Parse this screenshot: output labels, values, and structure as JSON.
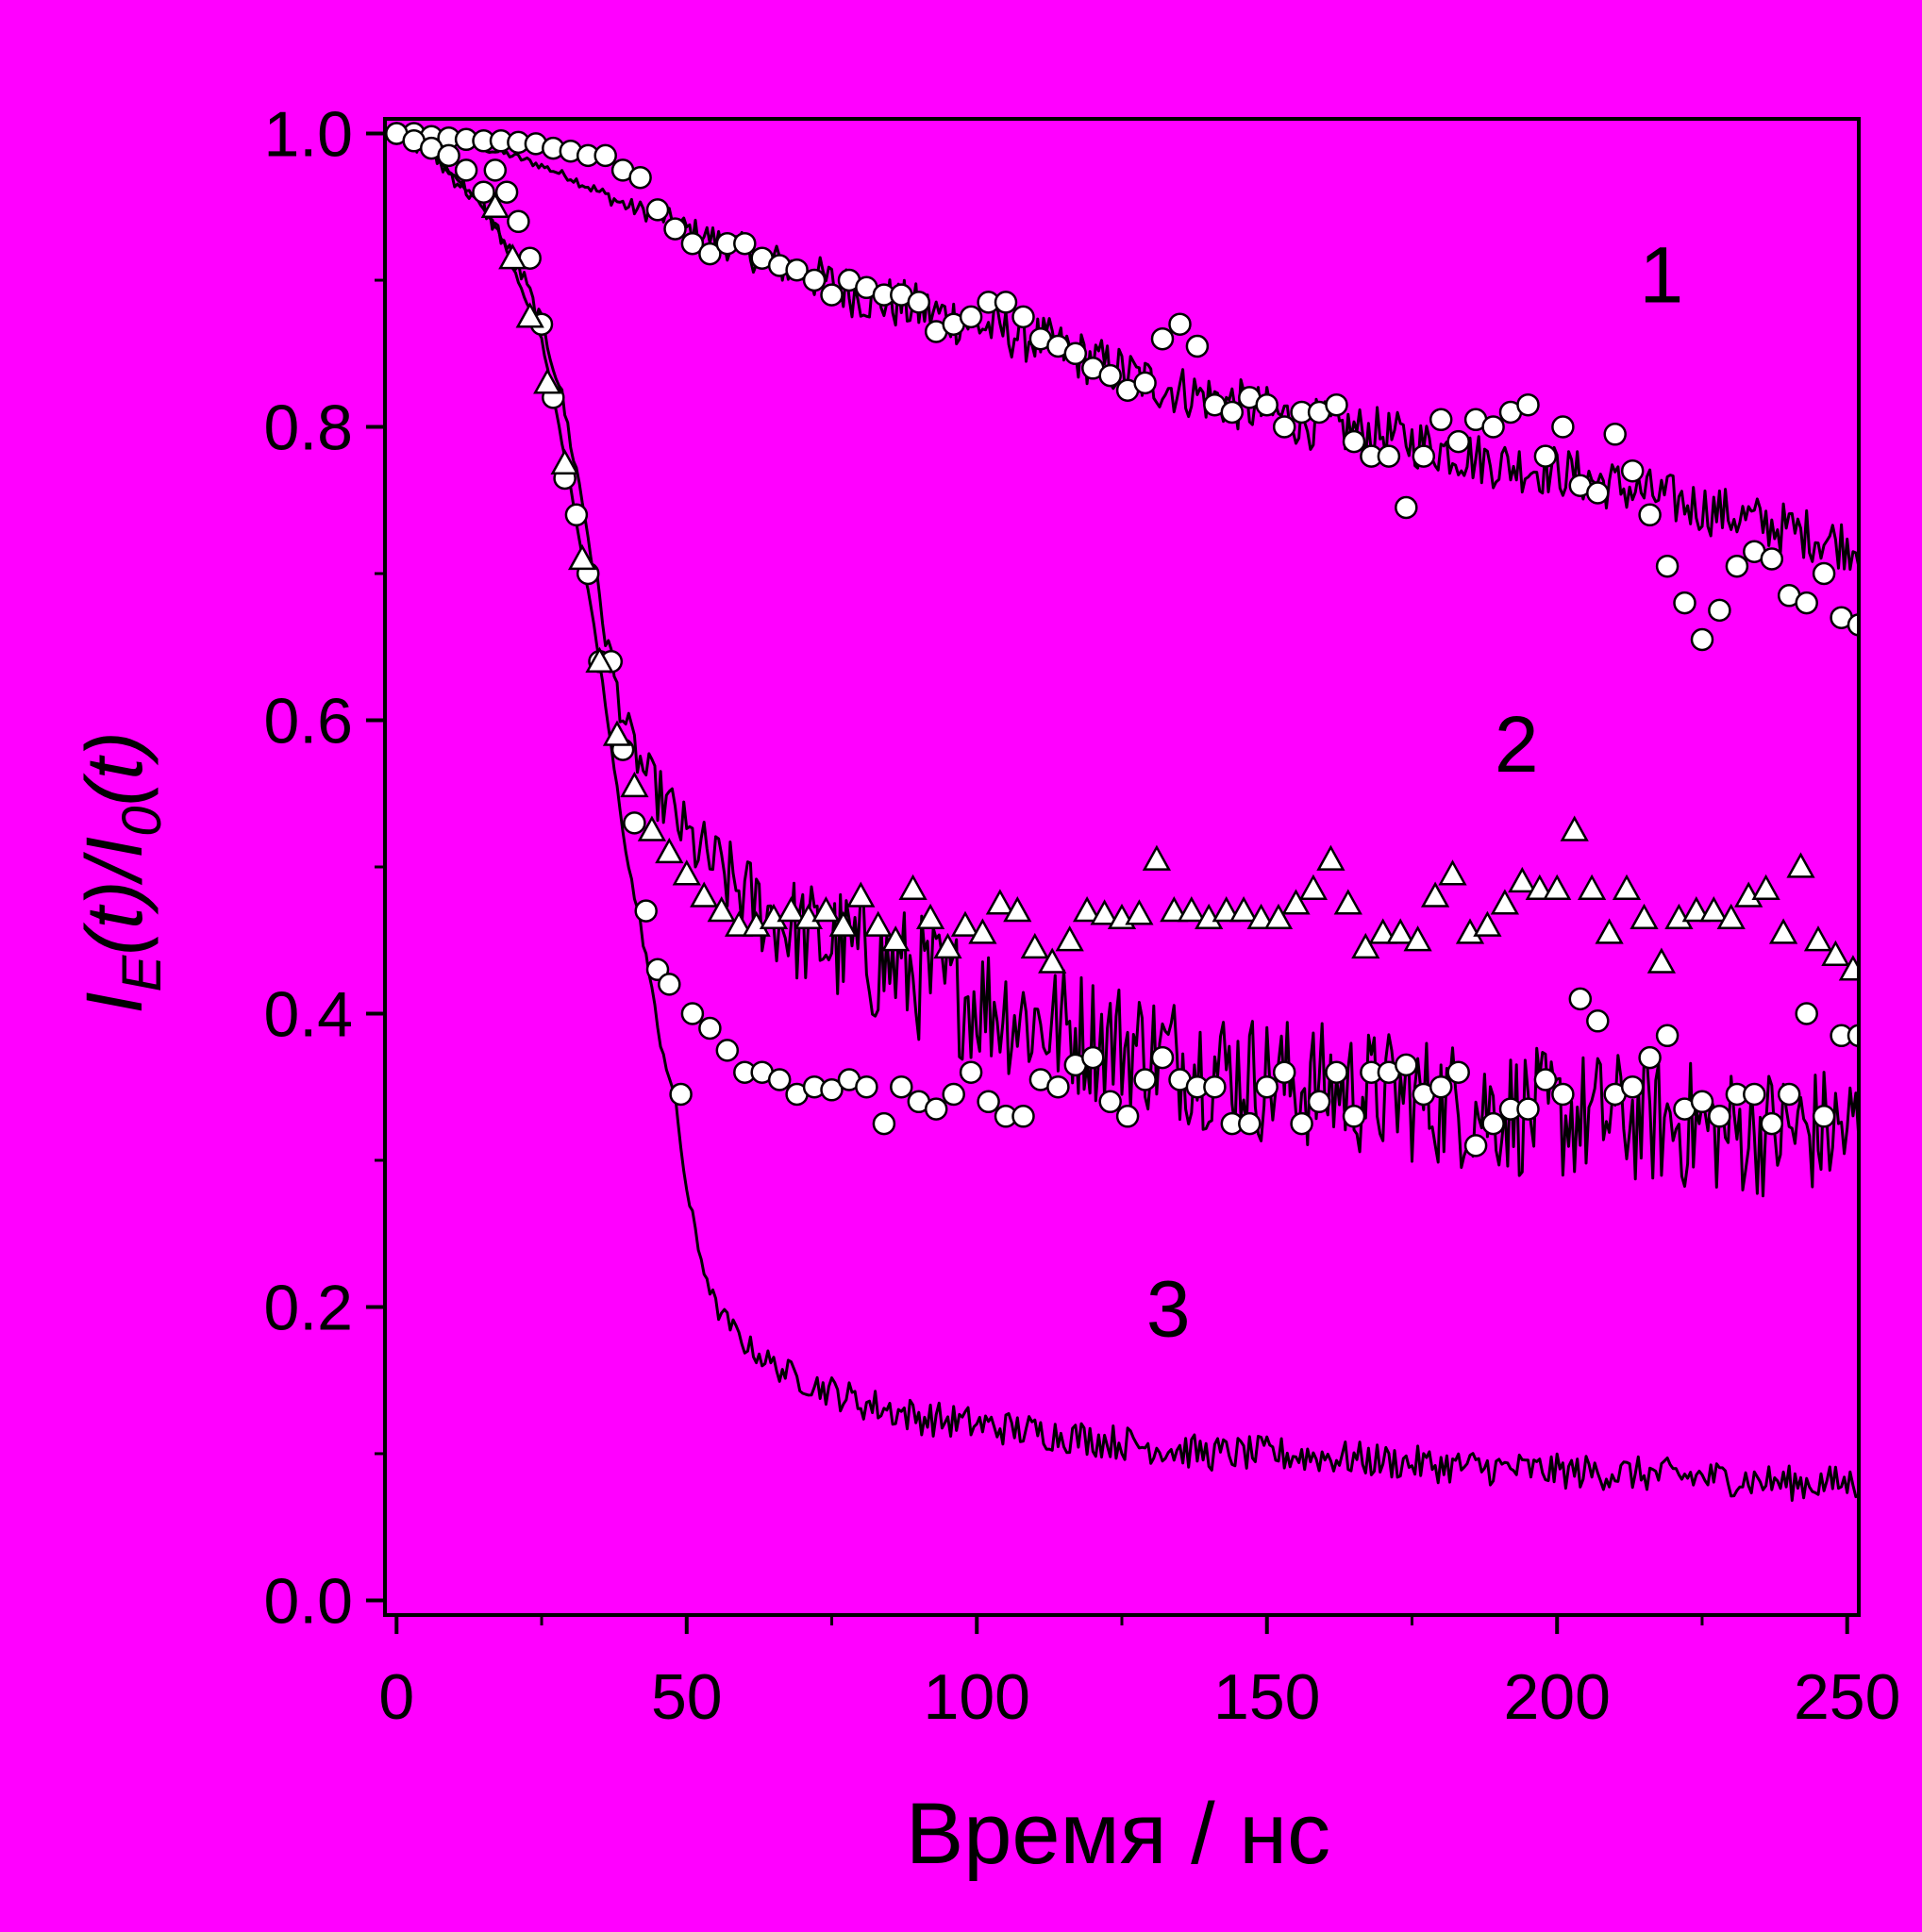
{
  "colors": {
    "background": "#ff00ff",
    "axis": "#000000",
    "line": "#000000",
    "marker_fill": "#ffffff",
    "marker_stroke": "#000000"
  },
  "chart_data": {
    "type": "line",
    "xlabel": "Время / нс",
    "ylabel": {
      "I1": "I",
      "sub1": "E",
      "mid": "(t)/",
      "I2": "I",
      "sub2": "0",
      "end": "(t)"
    },
    "xlim": [
      -2,
      252
    ],
    "ylim": [
      -0.01,
      1.01
    ],
    "xticks": [
      0,
      50,
      100,
      150,
      200,
      250
    ],
    "xtick_labels": [
      "0",
      "50",
      "100",
      "150",
      "200",
      "250"
    ],
    "yticks": [
      0.0,
      0.2,
      0.4,
      0.6,
      0.8,
      1.0
    ],
    "ytick_labels": [
      "0.0",
      "0.2",
      "0.4",
      "0.6",
      "0.8",
      "1.0"
    ],
    "minor_xticks": [
      25,
      75,
      125,
      175,
      225
    ],
    "minor_yticks": [
      0.1,
      0.3,
      0.5,
      0.7,
      0.9
    ],
    "grid": false,
    "legend": "none",
    "curve_labels": [
      {
        "text": "1",
        "x": 218,
        "y": 0.885
      },
      {
        "text": "2",
        "x": 193,
        "y": 0.565
      },
      {
        "text": "3",
        "x": 133,
        "y": 0.18
      }
    ],
    "series": [
      {
        "kind": "line",
        "x": [
          0,
          5,
          10,
          15,
          20,
          25,
          30,
          35,
          40,
          45,
          50,
          60,
          70,
          80,
          90,
          100,
          110,
          120,
          130,
          140,
          150,
          160,
          170,
          180,
          190,
          200,
          210,
          220,
          230,
          240,
          250,
          252
        ],
        "y": [
          1.0,
          0.998,
          0.995,
          0.99,
          0.985,
          0.978,
          0.97,
          0.96,
          0.95,
          0.945,
          0.935,
          0.92,
          0.905,
          0.89,
          0.88,
          0.87,
          0.86,
          0.845,
          0.83,
          0.82,
          0.81,
          0.8,
          0.795,
          0.785,
          0.775,
          0.77,
          0.76,
          0.75,
          0.74,
          0.73,
          0.72,
          0.72
        ],
        "noise": 0.018
      },
      {
        "kind": "line",
        "x": [
          0,
          5,
          10,
          15,
          18,
          22,
          25,
          28,
          32,
          35,
          38,
          40,
          42,
          45,
          48,
          50,
          55,
          60,
          65,
          70,
          80,
          90,
          100,
          110,
          120,
          130,
          140,
          150,
          160,
          170,
          180,
          190,
          200,
          210,
          220,
          230,
          240,
          250,
          252
        ],
        "y": [
          1.0,
          0.99,
          0.97,
          0.95,
          0.93,
          0.9,
          0.87,
          0.83,
          0.75,
          0.68,
          0.62,
          0.59,
          0.57,
          0.55,
          0.535,
          0.52,
          0.5,
          0.48,
          0.465,
          0.455,
          0.44,
          0.425,
          0.41,
          0.395,
          0.385,
          0.375,
          0.365,
          0.355,
          0.35,
          0.345,
          0.34,
          0.335,
          0.33,
          0.33,
          0.325,
          0.32,
          0.32,
          0.32,
          0.32
        ],
        "noise": 0.045
      },
      {
        "kind": "line",
        "x": [
          0,
          5,
          10,
          15,
          18,
          22,
          25,
          28,
          30,
          32,
          35,
          37,
          40,
          43,
          45,
          48,
          50,
          52,
          55,
          60,
          65,
          70,
          80,
          90,
          100,
          110,
          120,
          130,
          140,
          150,
          160,
          170,
          180,
          190,
          200,
          210,
          220,
          230,
          240,
          250,
          252
        ],
        "y": [
          1.0,
          0.99,
          0.97,
          0.95,
          0.93,
          0.89,
          0.86,
          0.8,
          0.76,
          0.71,
          0.64,
          0.58,
          0.5,
          0.44,
          0.39,
          0.34,
          0.28,
          0.24,
          0.2,
          0.175,
          0.16,
          0.15,
          0.135,
          0.125,
          0.12,
          0.115,
          0.11,
          0.105,
          0.1,
          0.1,
          0.098,
          0.095,
          0.092,
          0.09,
          0.088,
          0.087,
          0.085,
          0.083,
          0.08,
          0.08,
          0.08
        ],
        "noise": 0.012
      },
      {
        "kind": "circles",
        "x": [
          0,
          3,
          6,
          9,
          12,
          15,
          18,
          21,
          24,
          27,
          30,
          33,
          36,
          39,
          42,
          45,
          48,
          51,
          54,
          57,
          60,
          63,
          66,
          69,
          72,
          75,
          78,
          81,
          84,
          87,
          90,
          93,
          96,
          99,
          102,
          105,
          108,
          111,
          114,
          117,
          120,
          123,
          126,
          129,
          132,
          135,
          138,
          141,
          144,
          147,
          150,
          153,
          156,
          159,
          162,
          165,
          168,
          171,
          174,
          177,
          180,
          183,
          186,
          189,
          192,
          195,
          198,
          201,
          204,
          207,
          210,
          213,
          216,
          219,
          222,
          225,
          228,
          231,
          234,
          237,
          240,
          243,
          246,
          249,
          252
        ],
        "y": [
          1.0,
          1.0,
          0.998,
          0.997,
          0.996,
          0.995,
          0.995,
          0.994,
          0.993,
          0.99,
          0.988,
          0.985,
          0.985,
          0.975,
          0.97,
          0.948,
          0.935,
          0.925,
          0.918,
          0.925,
          0.925,
          0.915,
          0.91,
          0.907,
          0.9,
          0.89,
          0.9,
          0.895,
          0.89,
          0.89,
          0.885,
          0.865,
          0.87,
          0.875,
          0.885,
          0.885,
          0.875,
          0.86,
          0.855,
          0.85,
          0.84,
          0.835,
          0.825,
          0.83,
          0.86,
          0.87,
          0.855,
          0.815,
          0.81,
          0.82,
          0.815,
          0.8,
          0.81,
          0.81,
          0.815,
          0.79,
          0.78,
          0.78,
          0.745,
          0.78,
          0.805,
          0.79,
          0.805,
          0.8,
          0.81,
          0.815,
          0.78,
          0.8,
          0.76,
          0.755,
          0.795,
          0.77,
          0.74,
          0.705,
          0.68,
          0.655,
          0.675,
          0.705,
          0.715,
          0.71,
          0.685,
          0.68,
          0.7,
          0.67,
          0.665
        ]
      },
      {
        "kind": "circles",
        "x": [
          0,
          3,
          6,
          9,
          12,
          15,
          17,
          19,
          21,
          23,
          25,
          27,
          29,
          31,
          33,
          35,
          37,
          39,
          41,
          43,
          45,
          47,
          49,
          51,
          54,
          57,
          60,
          63,
          66,
          69,
          72,
          75,
          78,
          81,
          84,
          87,
          90,
          93,
          96,
          99,
          102,
          105,
          108,
          111,
          114,
          117,
          120,
          123,
          126,
          129,
          132,
          135,
          138,
          141,
          144,
          147,
          150,
          153,
          156,
          159,
          162,
          165,
          168,
          171,
          174,
          177,
          180,
          183,
          186,
          189,
          192,
          195,
          198,
          201,
          204,
          207,
          210,
          213,
          216,
          219,
          222,
          225,
          228,
          231,
          234,
          237,
          240,
          243,
          246,
          249,
          252
        ],
        "y": [
          1.0,
          0.995,
          0.99,
          0.985,
          0.975,
          0.96,
          0.975,
          0.96,
          0.94,
          0.915,
          0.87,
          0.82,
          0.765,
          0.74,
          0.7,
          0.64,
          0.64,
          0.58,
          0.53,
          0.47,
          0.43,
          0.42,
          0.345,
          0.4,
          0.39,
          0.375,
          0.36,
          0.36,
          0.355,
          0.345,
          0.35,
          0.348,
          0.355,
          0.35,
          0.325,
          0.35,
          0.34,
          0.335,
          0.345,
          0.36,
          0.34,
          0.33,
          0.33,
          0.355,
          0.35,
          0.365,
          0.37,
          0.34,
          0.33,
          0.355,
          0.37,
          0.355,
          0.35,
          0.35,
          0.325,
          0.325,
          0.35,
          0.36,
          0.325,
          0.34,
          0.36,
          0.33,
          0.36,
          0.36,
          0.365,
          0.345,
          0.35,
          0.36,
          0.31,
          0.325,
          0.335,
          0.335,
          0.355,
          0.345,
          0.41,
          0.395,
          0.345,
          0.35,
          0.37,
          0.385,
          0.335,
          0.34,
          0.33,
          0.345,
          0.345,
          0.325,
          0.345,
          0.4,
          0.33,
          0.385,
          0.385
        ]
      },
      {
        "kind": "triangles",
        "x": [
          17,
          20,
          23,
          26,
          29,
          32,
          35,
          38,
          41,
          44,
          47,
          50,
          53,
          56,
          59,
          62,
          65,
          68,
          71,
          74,
          77,
          80,
          83,
          86,
          89,
          92,
          95,
          98,
          101,
          104,
          107,
          110,
          113,
          116,
          119,
          122,
          125,
          128,
          131,
          134,
          137,
          140,
          143,
          146,
          149,
          152,
          155,
          158,
          161,
          164,
          167,
          170,
          173,
          176,
          179,
          182,
          185,
          188,
          191,
          194,
          197,
          200,
          203,
          206,
          209,
          212,
          215,
          218,
          221,
          224,
          227,
          230,
          233,
          236,
          239,
          242,
          245,
          248,
          251
        ],
        "y": [
          0.95,
          0.915,
          0.875,
          0.83,
          0.775,
          0.71,
          0.64,
          0.59,
          0.555,
          0.525,
          0.51,
          0.495,
          0.48,
          0.47,
          0.46,
          0.46,
          0.465,
          0.47,
          0.465,
          0.47,
          0.46,
          0.48,
          0.46,
          0.45,
          0.485,
          0.465,
          0.445,
          0.46,
          0.455,
          0.475,
          0.47,
          0.445,
          0.435,
          0.45,
          0.47,
          0.468,
          0.465,
          0.468,
          0.505,
          0.47,
          0.47,
          0.465,
          0.47,
          0.47,
          0.465,
          0.465,
          0.475,
          0.485,
          0.505,
          0.475,
          0.445,
          0.455,
          0.455,
          0.45,
          0.48,
          0.495,
          0.455,
          0.46,
          0.475,
          0.49,
          0.485,
          0.485,
          0.525,
          0.485,
          0.455,
          0.485,
          0.465,
          0.435,
          0.465,
          0.47,
          0.47,
          0.465,
          0.48,
          0.485,
          0.455,
          0.5,
          0.45,
          0.44,
          0.43
        ]
      }
    ]
  }
}
